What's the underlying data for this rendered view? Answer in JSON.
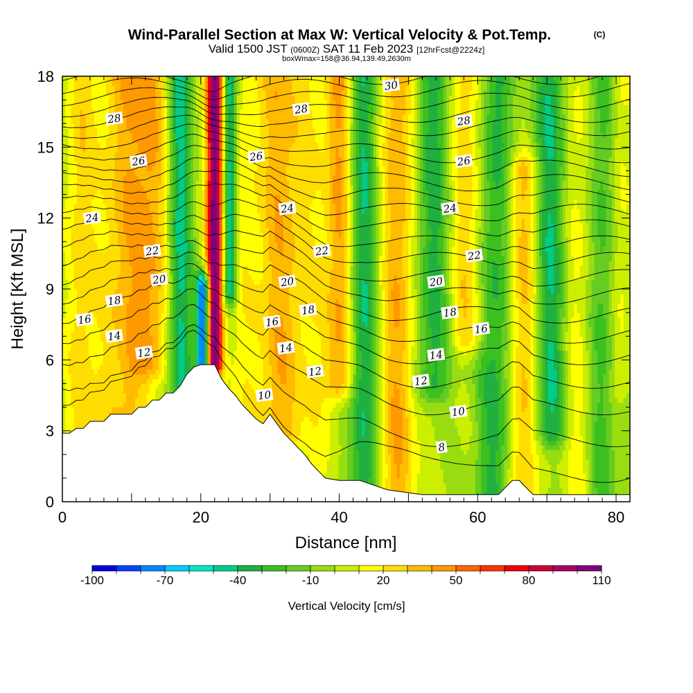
{
  "title": {
    "main": "Wind-Parallel Section at Max W: Vertical Velocity & Pot.Temp.",
    "copyright": "(C)",
    "valid_prefix": "Valid 1500 JST",
    "valid_utc": "(0600Z)",
    "valid_date": "SAT 11 Feb 2023",
    "forecast": "[12hrFcst@2224z]",
    "box_info": "boxWmax=158@36.94,139.49,2630m"
  },
  "chart_data": {
    "type": "heatmap",
    "xlabel": "Distance [nm]",
    "ylabel": "Height [Kft MSL]",
    "xlim": [
      0,
      82
    ],
    "ylim": [
      0,
      18
    ],
    "x_ticks": [
      0,
      20,
      40,
      60,
      80
    ],
    "y_ticks": [
      0,
      3,
      6,
      9,
      12,
      15,
      18
    ],
    "colorbar": {
      "label": "Vertical Velocity [cm/s]",
      "tick_labels": [
        "-100",
        "-70",
        "-40",
        "-10",
        "20",
        "50",
        "80",
        "110"
      ],
      "levels": [
        -100,
        -90,
        -80,
        -70,
        -60,
        -50,
        -40,
        -30,
        -20,
        -10,
        0,
        10,
        20,
        30,
        40,
        50,
        60,
        70,
        80,
        90,
        100,
        110
      ],
      "colors": [
        "#0000e0",
        "#0044ff",
        "#0088ff",
        "#00ccff",
        "#00e8c8",
        "#00cc88",
        "#20b040",
        "#3cc020",
        "#66cc22",
        "#99dd11",
        "#ccee00",
        "#ffff00",
        "#ffdd00",
        "#ffbb00",
        "#ff9900",
        "#ff6600",
        "#ff3300",
        "#ee0000",
        "#cc0033",
        "#aa0066",
        "#800080"
      ]
    },
    "velocity_features": [
      {
        "x": 2.5,
        "zmin": 0,
        "zmax": 18,
        "w": 25,
        "width_nm": 2
      },
      {
        "x": 9,
        "zmin": 1,
        "zmax": 18,
        "w": 35,
        "width_nm": 4
      },
      {
        "x": 13,
        "zmin": 6,
        "zmax": 18,
        "w": 30,
        "width_nm": 2.5
      },
      {
        "x": 17,
        "zmin": 0,
        "zmax": 18,
        "w": -45,
        "width_nm": 1.7
      },
      {
        "x": 20.3,
        "zmin": 6,
        "zmax": 9,
        "w": -95,
        "width_nm": 0.9
      },
      {
        "x": 22.0,
        "zmin": 6,
        "zmax": 18,
        "w": 110,
        "width_nm": 1.2
      },
      {
        "x": 24.2,
        "zmin": 9,
        "zmax": 18,
        "w": -55,
        "width_nm": 1.0
      },
      {
        "x": 26.5,
        "zmin": 0,
        "zmax": 18,
        "w": 15,
        "width_nm": 3
      },
      {
        "x": 31.5,
        "zmin": 3,
        "zmax": 18,
        "w": 35,
        "width_nm": 3
      },
      {
        "x": 36,
        "zmin": 0,
        "zmax": 18,
        "w": 15,
        "width_nm": 3
      },
      {
        "x": 40,
        "zmin": 5,
        "zmax": 18,
        "w": 40,
        "width_nm": 2
      },
      {
        "x": 43.5,
        "zmin": 0,
        "zmax": 18,
        "w": -40,
        "width_nm": 2
      },
      {
        "x": 48.5,
        "zmin": 0,
        "zmax": 18,
        "w": 40,
        "width_nm": 2.5
      },
      {
        "x": 53.5,
        "zmin": 5,
        "zmax": 18,
        "w": -35,
        "width_nm": 2.5
      },
      {
        "x": 58.5,
        "zmin": 7,
        "zmax": 18,
        "w": 30,
        "width_nm": 2.5
      },
      {
        "x": 62.5,
        "zmin": 0,
        "zmax": 18,
        "w": -35,
        "width_nm": 2.5
      },
      {
        "x": 66.5,
        "zmin": 0,
        "zmax": 14,
        "w": 35,
        "width_nm": 2.2
      },
      {
        "x": 70.5,
        "zmin": 3,
        "zmax": 18,
        "w": -40,
        "width_nm": 2.2
      },
      {
        "x": 74.5,
        "zmin": 0,
        "zmax": 18,
        "w": 15,
        "width_nm": 2
      },
      {
        "x": 78,
        "zmin": 0,
        "zmax": 18,
        "w": -25,
        "width_nm": 2
      },
      {
        "x": 80.5,
        "zmin": 5,
        "zmax": 18,
        "w": 15,
        "width_nm": 1.5
      }
    ],
    "terrain": [
      [
        0,
        2.9
      ],
      [
        1,
        2.9
      ],
      [
        2,
        3.1
      ],
      [
        3,
        3.1
      ],
      [
        4,
        3.4
      ],
      [
        6,
        3.4
      ],
      [
        7,
        3.7
      ],
      [
        10,
        3.7
      ],
      [
        11,
        4.0
      ],
      [
        12,
        4.0
      ],
      [
        13,
        4.3
      ],
      [
        14,
        4.3
      ],
      [
        15,
        4.6
      ],
      [
        16,
        4.6
      ],
      [
        17,
        4.9
      ],
      [
        18,
        5.4
      ],
      [
        19,
        5.7
      ],
      [
        20,
        5.8
      ],
      [
        21,
        5.8
      ],
      [
        22,
        5.8
      ],
      [
        23,
        5.2
      ],
      [
        24,
        4.8
      ],
      [
        25,
        4.5
      ],
      [
        26,
        4.1
      ],
      [
        27,
        3.8
      ],
      [
        28,
        3.5
      ],
      [
        29,
        3.3
      ],
      [
        30,
        3.7
      ],
      [
        31,
        3.3
      ],
      [
        32,
        2.9
      ],
      [
        33,
        2.6
      ],
      [
        34,
        2.3
      ],
      [
        35,
        2.0
      ],
      [
        36,
        1.6
      ],
      [
        37,
        1.3
      ],
      [
        38,
        1.0
      ],
      [
        40,
        0.9
      ],
      [
        43,
        0.9
      ],
      [
        45,
        0.7
      ],
      [
        47,
        0.5
      ],
      [
        52,
        0.3
      ],
      [
        56,
        0.3
      ],
      [
        63,
        0.3
      ],
      [
        64,
        0.6
      ],
      [
        65,
        0.9
      ],
      [
        66,
        0.9
      ],
      [
        67,
        0.6
      ],
      [
        68,
        0.3
      ],
      [
        70,
        0.3
      ],
      [
        82,
        0.3
      ]
    ],
    "theta_levels": [
      8,
      9,
      10,
      11,
      12,
      13,
      14,
      15,
      16,
      17,
      18,
      19,
      20,
      21,
      22,
      23,
      24,
      25,
      26,
      27,
      28,
      29,
      30
    ],
    "theta_labels": [
      {
        "text": "30",
        "x": 47.5,
        "z": 17.6
      },
      {
        "text": "28",
        "x": 7.5,
        "z": 16.2
      },
      {
        "text": "28",
        "x": 34.5,
        "z": 16.6
      },
      {
        "text": "28",
        "x": 58,
        "z": 16.1
      },
      {
        "text": "26",
        "x": 11,
        "z": 14.4
      },
      {
        "text": "26",
        "x": 28,
        "z": 14.6
      },
      {
        "text": "26",
        "x": 58,
        "z": 14.4
      },
      {
        "text": "24",
        "x": 4.3,
        "z": 12.0
      },
      {
        "text": "24",
        "x": 32.5,
        "z": 12.4
      },
      {
        "text": "24",
        "x": 56,
        "z": 12.4
      },
      {
        "text": "22",
        "x": 13,
        "z": 10.6
      },
      {
        "text": "22",
        "x": 37.5,
        "z": 10.6
      },
      {
        "text": "22",
        "x": 59.5,
        "z": 10.4
      },
      {
        "text": "20",
        "x": 14,
        "z": 9.4
      },
      {
        "text": "20",
        "x": 32.5,
        "z": 9.3
      },
      {
        "text": "20",
        "x": 54,
        "z": 9.3
      },
      {
        "text": "18",
        "x": 7.5,
        "z": 8.5
      },
      {
        "text": "18",
        "x": 35.5,
        "z": 8.1
      },
      {
        "text": "18",
        "x": 56,
        "z": 8.0
      },
      {
        "text": "16",
        "x": 3.2,
        "z": 7.7
      },
      {
        "text": "16",
        "x": 30.3,
        "z": 7.6
      },
      {
        "text": "16",
        "x": 60.5,
        "z": 7.3
      },
      {
        "text": "14",
        "x": 7.5,
        "z": 7.0
      },
      {
        "text": "14",
        "x": 32.3,
        "z": 6.5
      },
      {
        "text": "14",
        "x": 54,
        "z": 6.2
      },
      {
        "text": "12",
        "x": 11.8,
        "z": 6.3
      },
      {
        "text": "12",
        "x": 36.5,
        "z": 5.5
      },
      {
        "text": "12",
        "x": 51.8,
        "z": 5.1
      },
      {
        "text": "10",
        "x": 29.2,
        "z": 4.5
      },
      {
        "text": "10",
        "x": 57.2,
        "z": 3.8
      },
      {
        "text": "8",
        "x": 54.8,
        "z": 2.3
      }
    ],
    "grid": false,
    "legend": "colorbar-bottom"
  }
}
